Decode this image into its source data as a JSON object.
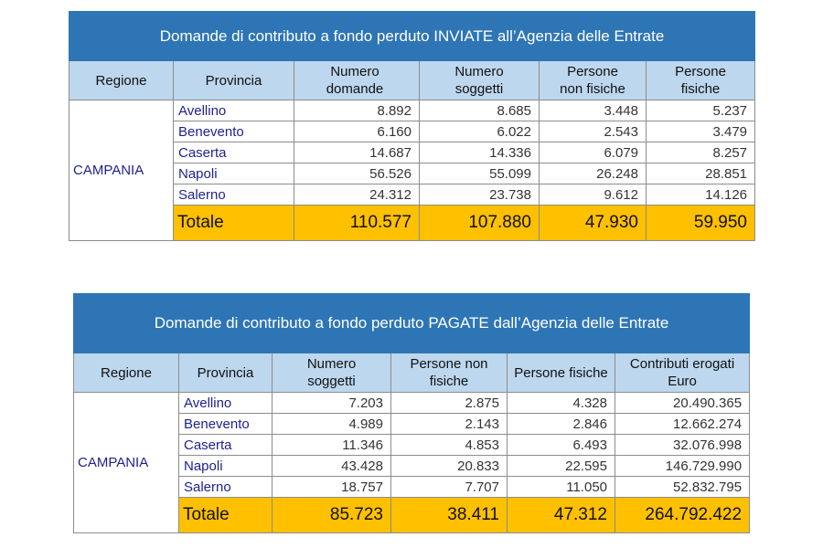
{
  "table1": {
    "title": "Domande di contributo a fondo perduto INVIATE all’Agenzia delle Entrate",
    "headers": [
      "Regione",
      "Provincia",
      "Numero domande",
      "Numero soggetti",
      "Persone non fisiche",
      "Persone fisiche"
    ],
    "region": "CAMPANIA",
    "rows": [
      [
        "Avellino",
        "8.892",
        "8.685",
        "3.448",
        "5.237"
      ],
      [
        "Benevento",
        "6.160",
        "6.022",
        "2.543",
        "3.479"
      ],
      [
        "Caserta",
        "14.687",
        "14.336",
        "6.079",
        "8.257"
      ],
      [
        "Napoli",
        "56.526",
        "55.099",
        "26.248",
        "28.851"
      ],
      [
        "Salerno",
        "24.312",
        "23.738",
        "9.612",
        "14.126"
      ]
    ],
    "total": [
      "Totale",
      "110.577",
      "107.880",
      "47.930",
      "59.950"
    ]
  },
  "table2": {
    "title": "Domande di contributo a fondo perduto PAGATE dall’Agenzia delle Entrate",
    "headers": [
      "Regione",
      "Provincia",
      "Numero soggetti",
      "Persone non fisiche",
      "Persone fisiche",
      "Contributi erogati Euro"
    ],
    "region": "CAMPANIA",
    "rows": [
      [
        "Avellino",
        "7.203",
        "2.875",
        "4.328",
        "20.490.365"
      ],
      [
        "Benevento",
        "4.989",
        "2.143",
        "2.846",
        "12.662.274"
      ],
      [
        "Caserta",
        "11.346",
        "4.853",
        "6.493",
        "32.076.998"
      ],
      [
        "Napoli",
        "43.428",
        "20.833",
        "22.595",
        "146.729.990"
      ],
      [
        "Salerno",
        "18.757",
        "7.707",
        "11.050",
        "52.832.795"
      ]
    ],
    "total": [
      "Totale",
      "85.723",
      "38.411",
      "47.312",
      "264.792.422"
    ]
  },
  "colors": {
    "title_bg": "#2e75b6",
    "header_bg": "#bdd7ee",
    "total_bg": "#ffc000",
    "province_text": "#1f1f8f"
  }
}
